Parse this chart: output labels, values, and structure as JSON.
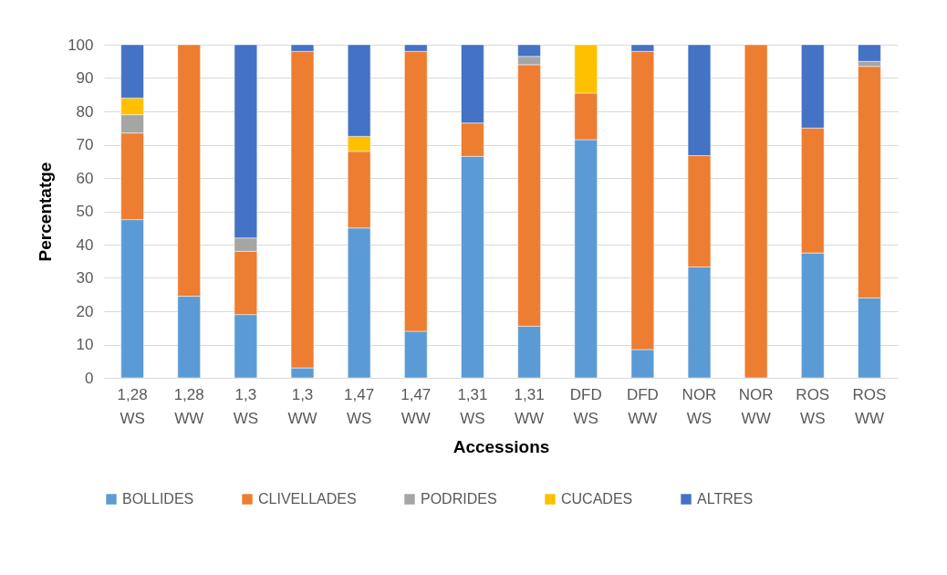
{
  "chart_data": {
    "type": "bar",
    "stacked": true,
    "xlabel": "Accessions",
    "ylabel": "Percentatge",
    "categories": [
      "1,28 WS",
      "1,28 WW",
      "1,3 WS",
      "1,3 WW",
      "1,47 WS",
      "1,47 WW",
      "1,31 WS",
      "1,31 WW",
      "DFD WS",
      "DFD WW",
      "NOR WS",
      "NOR WW",
      "ROS WS",
      "ROS WW"
    ],
    "series": [
      {
        "name": "BOLLIDES",
        "color": "#5b9bd5",
        "values": [
          47.5,
          24.5,
          19,
          3,
          45,
          14,
          66.5,
          15.5,
          71.5,
          8.5,
          33.3,
          null,
          37.5,
          24
        ]
      },
      {
        "name": "CLIVELLADES",
        "color": "#ed7d31",
        "values": [
          26,
          75.5,
          19,
          95,
          23,
          84,
          10,
          78.5,
          14,
          89.5,
          33.4,
          100,
          37.5,
          69.5
        ]
      },
      {
        "name": "PODRIDES",
        "color": "#a5a5a5",
        "values": [
          5.5,
          null,
          4,
          null,
          null,
          null,
          null,
          2.5,
          null,
          null,
          null,
          null,
          null,
          1.5
        ]
      },
      {
        "name": "CUCADES",
        "color": "#ffc000",
        "values": [
          5,
          null,
          null,
          null,
          4.5,
          null,
          null,
          null,
          14.5,
          null,
          null,
          null,
          null,
          null
        ]
      },
      {
        "name": "ALTRES",
        "color": "#4472c4",
        "values": [
          16,
          null,
          58,
          2,
          27.5,
          2,
          23.5,
          3.5,
          null,
          2,
          33.3,
          null,
          25,
          5
        ]
      }
    ],
    "ylim": [
      0,
      100
    ],
    "yticks": [
      0,
      10,
      20,
      30,
      40,
      50,
      60,
      70,
      80,
      90,
      100
    ],
    "grid": "y",
    "legend": "bottom"
  }
}
